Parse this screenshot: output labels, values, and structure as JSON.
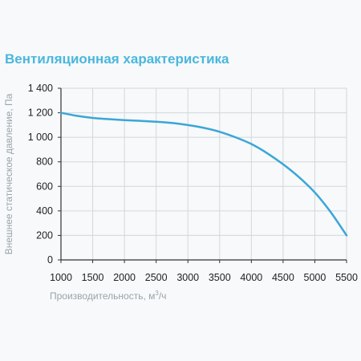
{
  "chart_data": {
    "type": "line",
    "title": "Вентиляционная характеристика",
    "xlabel_main": "Производительность, м",
    "xlabel_sup": "3",
    "xlabel_tail": "/ч",
    "ylabel": "Внешнее статическое давление, Па",
    "xlim": [
      1000,
      5500
    ],
    "ylim": [
      0,
      1400
    ],
    "x_ticks": [
      1000,
      1500,
      2000,
      2500,
      3000,
      3500,
      4000,
      4500,
      5000,
      5500
    ],
    "y_ticks": [
      0,
      200,
      400,
      600,
      800,
      1000,
      1200,
      1400
    ],
    "y_tick_labels": [
      "0",
      "200",
      "400",
      "600",
      "800",
      "1 000",
      "1 200",
      "1 400"
    ],
    "grid": true,
    "series": [
      {
        "color": "#3aa6d8",
        "x": [
          1000,
          1250,
          1500,
          1750,
          2000,
          2250,
          2500,
          2750,
          3000,
          3250,
          3500,
          3750,
          4000,
          4250,
          4500,
          4750,
          5000,
          5250,
          5500
        ],
        "y": [
          1200,
          1175,
          1158,
          1148,
          1140,
          1134,
          1127,
          1117,
          1100,
          1077,
          1045,
          1000,
          945,
          870,
          780,
          675,
          550,
          390,
          200
        ]
      }
    ]
  }
}
